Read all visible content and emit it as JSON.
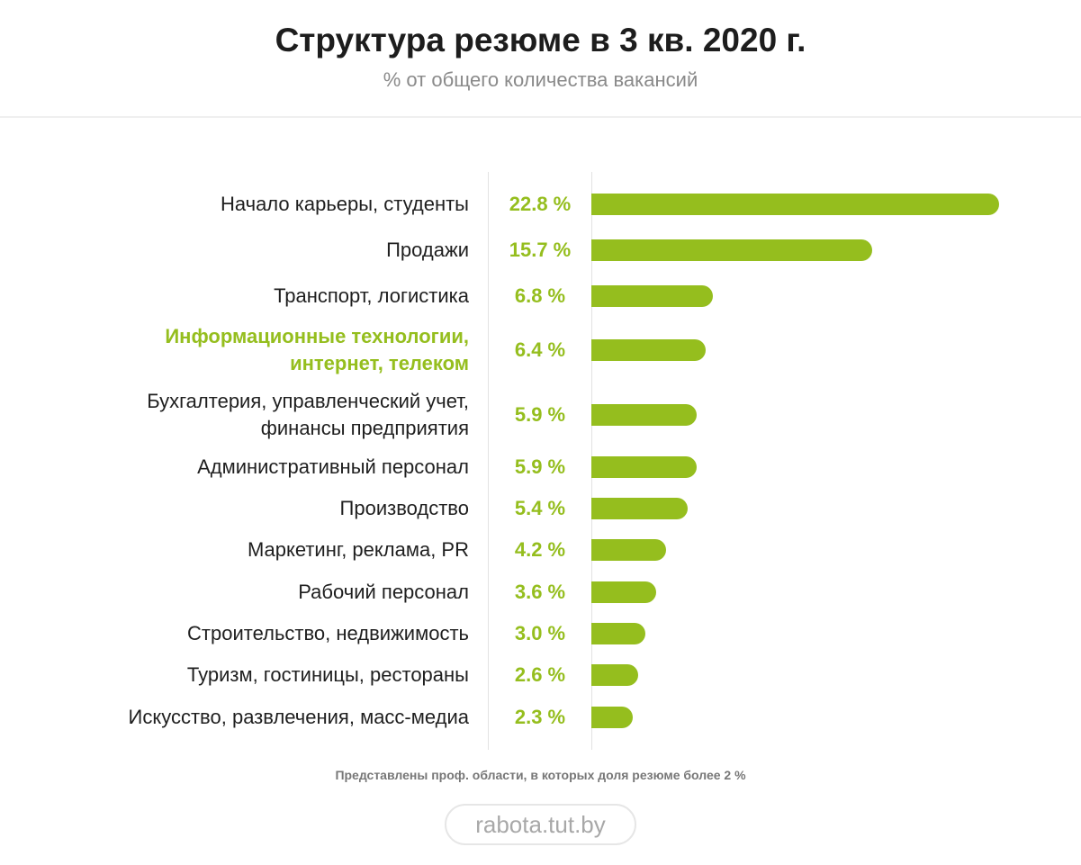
{
  "header": {
    "title": "Структура резюме в 3 кв. 2020 г.",
    "subtitle": "% от общего количества вакансий"
  },
  "chart_data": {
    "type": "bar",
    "orientation": "horizontal",
    "title": "Структура резюме в 3 кв. 2020 г.",
    "subtitle": "% от общего количества вакансий",
    "categories": [
      [
        "Начало карьеры, студенты"
      ],
      [
        "Продажи"
      ],
      [
        "Транспорт, логистика"
      ],
      [
        "Информационные технологии,",
        "интернет, телеком"
      ],
      [
        "Бухгалтерия, управленческий учет,",
        "финансы предприятия"
      ],
      [
        "Административный персонал"
      ],
      [
        "Производство"
      ],
      [
        "Маркетинг, реклама, PR"
      ],
      [
        "Рабочий персонал"
      ],
      [
        "Строительство, недвижимость"
      ],
      [
        "Туризм, гостиницы, рестораны"
      ],
      [
        "Искусство, развлечения, масс-медиа"
      ]
    ],
    "values": [
      22.8,
      15.7,
      6.8,
      6.4,
      5.9,
      5.9,
      5.4,
      4.2,
      3.6,
      3.0,
      2.6,
      2.3
    ],
    "value_labels": [
      "22.8 %",
      "15.7 %",
      "6.8 %",
      "6.4 %",
      "5.9 %",
      "5.9 %",
      "5.4 %",
      "4.2 %",
      "3.6 %",
      "3.0 %",
      "2.6 %",
      "2.3 %"
    ],
    "highlight_index": 3,
    "bar_color": "#95be1e",
    "highlight_color": "#95be1e",
    "xlim": [
      0,
      22.8
    ],
    "grid": false,
    "legend": "none"
  },
  "footer": {
    "note": "Представлены проф. области, в которых доля резюме более 2 %",
    "brand": "rabota.tut.by"
  }
}
